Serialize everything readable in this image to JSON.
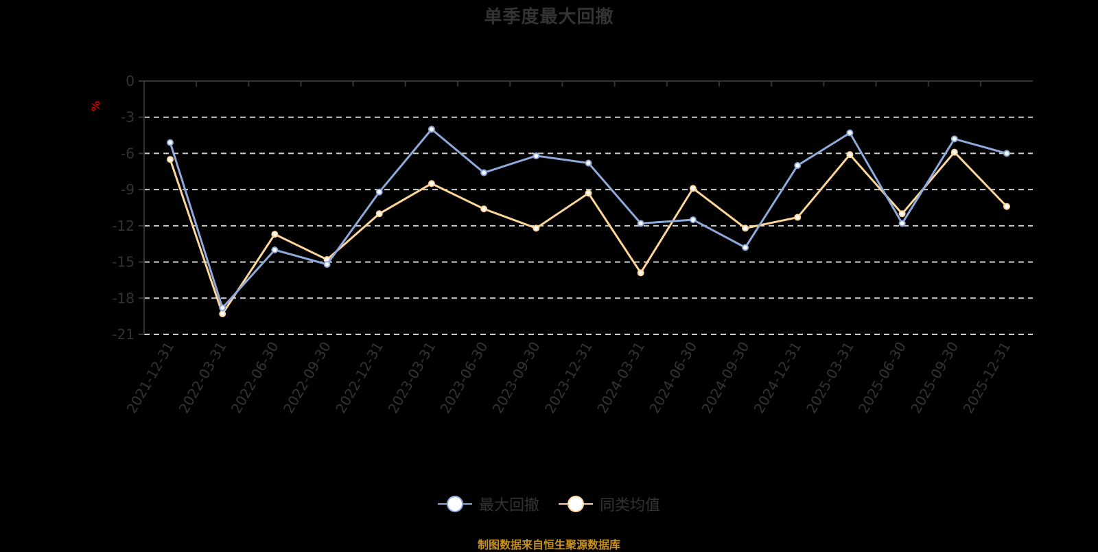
{
  "title": "单季度最大回撤",
  "y_unit": "%",
  "footer": "制图数据来自恒生聚源数据库",
  "legend": [
    {
      "label": "最大回撤",
      "color": "#8eaadb"
    },
    {
      "label": "同类均值",
      "color": "#ffd699"
    }
  ],
  "colors": {
    "series1": "#8eaadb",
    "series2": "#ffd699",
    "axis": "#333333",
    "grid": "#cccccc",
    "background": "#000000",
    "unit": "#ff0000",
    "footer": "#c8901a"
  },
  "chart_data": {
    "type": "line",
    "title": "单季度最大回撤",
    "xlabel": "",
    "ylabel": "%",
    "ylim": [
      -21,
      0
    ],
    "yticks": [
      0,
      -3,
      -6,
      -9,
      -12,
      -15,
      -18,
      -21
    ],
    "grid": true,
    "legend_position": "bottom",
    "categories": [
      "2021-12-31",
      "2022-03-31",
      "2022-06-30",
      "2022-09-30",
      "2022-12-31",
      "2023-03-31",
      "2023-06-30",
      "2023-09-30",
      "2023-12-31",
      "2024-03-31",
      "2024-06-30",
      "2024-09-30",
      "2024-12-31",
      "2025-03-31",
      "2025-06-30",
      "2025-09-30",
      "2025-12-31"
    ],
    "series": [
      {
        "name": "最大回撤",
        "values": [
          -5.1,
          -18.8,
          -14.0,
          -15.2,
          -9.2,
          -4.0,
          -7.6,
          -6.2,
          -6.8,
          -11.8,
          -11.5,
          -13.8,
          -7.0,
          -4.3,
          -11.8,
          -4.8,
          -6.0
        ]
      },
      {
        "name": "同类均值",
        "values": [
          -6.5,
          -19.3,
          -12.7,
          -14.8,
          -11.0,
          -8.5,
          -10.6,
          -12.2,
          -9.3,
          -15.9,
          -8.9,
          -12.2,
          -11.3,
          -6.1,
          -11.0,
          -5.9,
          -10.4
        ]
      }
    ]
  }
}
